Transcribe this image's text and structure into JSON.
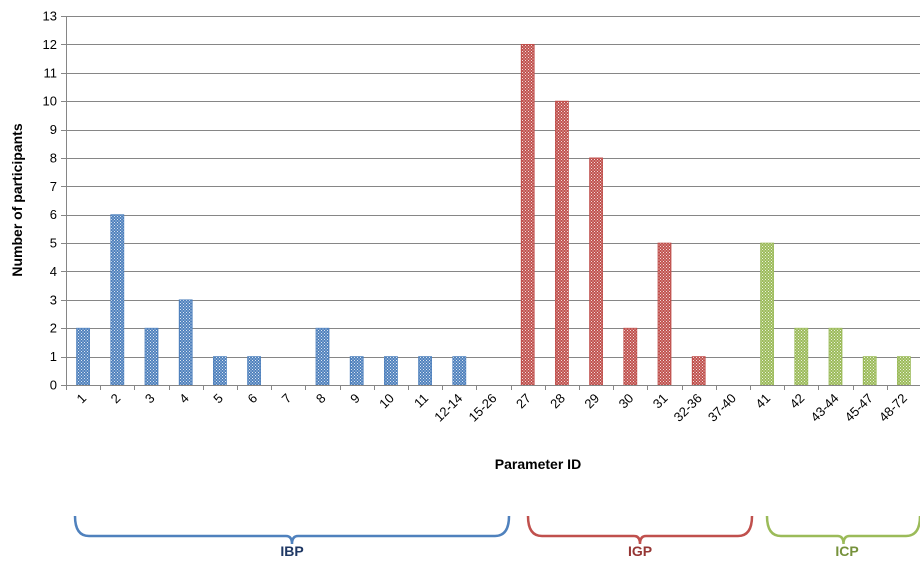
{
  "chart_data": {
    "type": "bar",
    "title": "",
    "xlabel": "Parameter ID",
    "ylabel": "Number of participants",
    "ylim": [
      0,
      13
    ],
    "yticks": [
      0,
      1,
      2,
      3,
      4,
      5,
      6,
      7,
      8,
      9,
      10,
      11,
      12,
      13
    ],
    "grid": true,
    "legend": "none",
    "categories": [
      "1",
      "2",
      "3",
      "4",
      "5",
      "6",
      "7",
      "8",
      "9",
      "10",
      "11",
      "12-14",
      "15-26",
      "27",
      "28",
      "29",
      "30",
      "31",
      "32-36",
      "37-40",
      "41",
      "42",
      "43-44",
      "45-47",
      "48-72"
    ],
    "values": [
      2,
      6,
      2,
      3,
      1,
      1,
      0,
      2,
      1,
      1,
      1,
      1,
      0,
      12,
      10,
      8,
      2,
      5,
      1,
      0,
      5,
      2,
      2,
      1,
      1
    ],
    "groups": [
      {
        "label": "IBP",
        "color": "#4f81bd",
        "label_color": "#1f3864",
        "categories": [
          "1",
          "2",
          "3",
          "4",
          "5",
          "6",
          "7",
          "8",
          "9",
          "10",
          "11",
          "12-14",
          "15-26"
        ]
      },
      {
        "label": "IGP",
        "color": "#c0504d",
        "label_color": "#963634",
        "categories": [
          "27",
          "28",
          "29",
          "30",
          "31",
          "32-36",
          "37-40"
        ]
      },
      {
        "label": "ICP",
        "color": "#9bbb59",
        "label_color": "#76923c",
        "categories": [
          "41",
          "42",
          "43-44",
          "45-47",
          "48-72"
        ]
      }
    ]
  }
}
